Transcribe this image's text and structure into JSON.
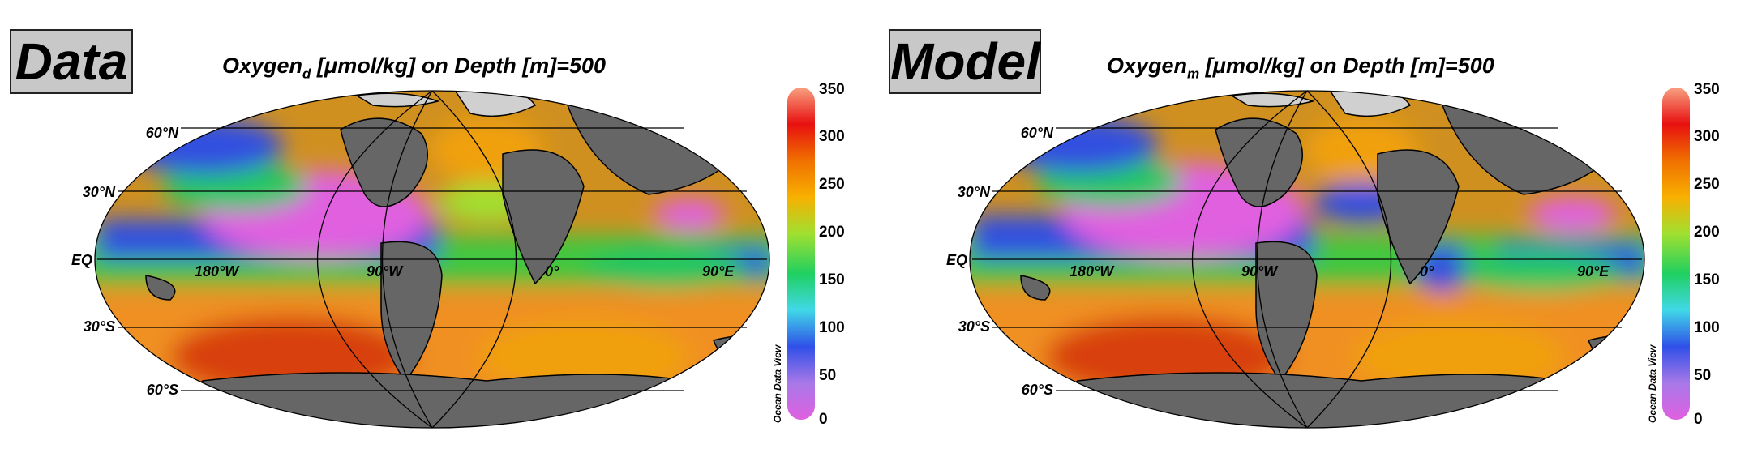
{
  "panels": [
    {
      "label": "Data",
      "title_main": "Oxygen",
      "title_sub": "d",
      "title_rest": " [μmol/kg] on Depth [m]=500"
    },
    {
      "label": "Model",
      "title_main": "Oxygen",
      "title_sub": "m",
      "title_rest": " [μmol/kg] on Depth [m]=500"
    }
  ],
  "lat_labels": [
    "60°N",
    "30°N",
    "EQ",
    "30°S",
    "60°S"
  ],
  "lon_labels": [
    "180°W",
    "90°W",
    "0°",
    "90°E"
  ],
  "colorbar": {
    "ticks": [
      "350",
      "300",
      "250",
      "200",
      "150",
      "100",
      "50",
      "0"
    ],
    "credit": "Ocean Data View",
    "range": [
      0,
      350
    ],
    "colors": [
      "#e060e0",
      "#a878e8",
      "#3050e8",
      "#40d8e8",
      "#20d060",
      "#a0e030",
      "#f8b000",
      "#f07000",
      "#e81010",
      "#f8a080"
    ]
  }
}
